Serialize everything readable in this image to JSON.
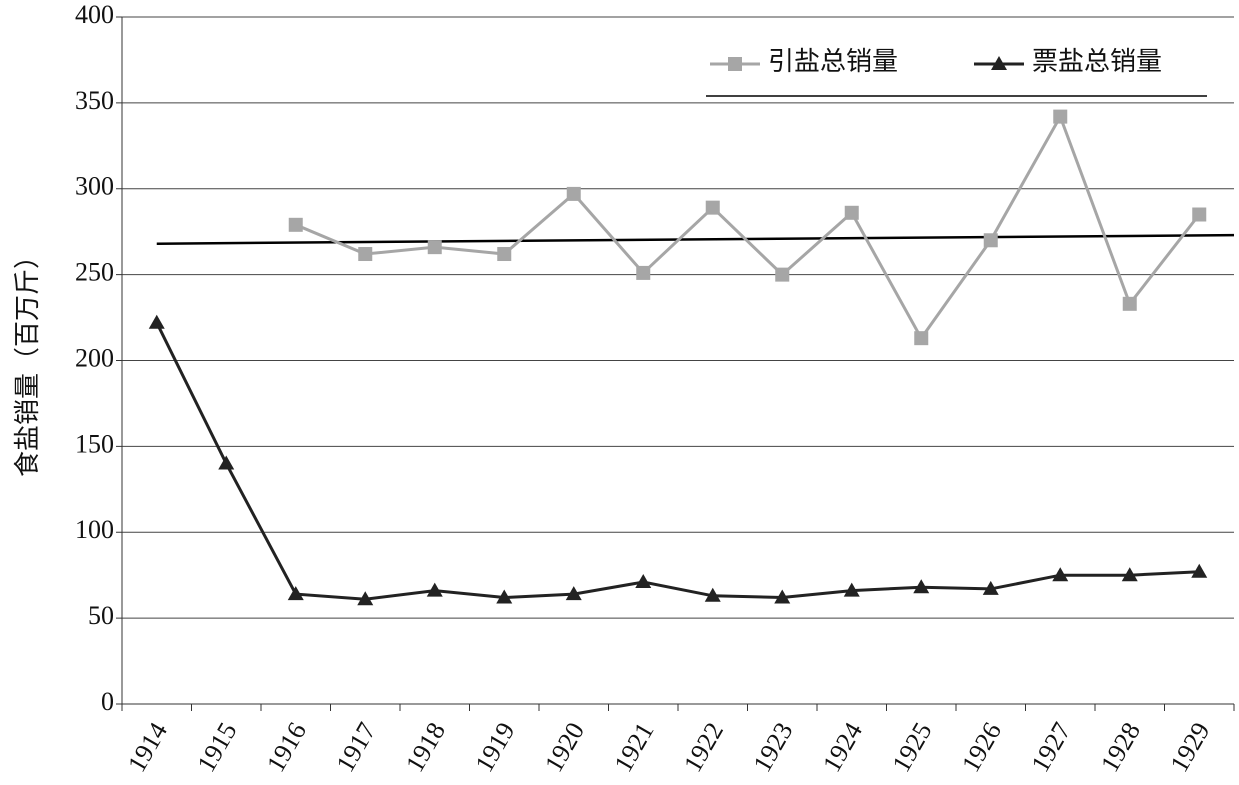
{
  "chart_data": {
    "type": "line",
    "y_label": "食盐销量（百万斤）",
    "categories": [
      "1914",
      "1915",
      "1916",
      "1917",
      "1918",
      "1919",
      "1920",
      "1921",
      "1922",
      "1923",
      "1924",
      "1925",
      "1926",
      "1927",
      "1928",
      "1929"
    ],
    "series": [
      {
        "name": "引盐总销量",
        "color": "#a6a6a6",
        "marker": "square",
        "values": [
          null,
          null,
          279,
          262,
          266,
          262,
          297,
          251,
          289,
          250,
          286,
          213,
          270,
          342,
          233,
          285
        ]
      },
      {
        "name": "票盐总销量",
        "color": "#222222",
        "marker": "triangle",
        "values": [
          222,
          140,
          64,
          61,
          66,
          62,
          64,
          71,
          63,
          62,
          66,
          68,
          67,
          75,
          75,
          77
        ]
      }
    ],
    "trend_line": {
      "color": "#000000",
      "values": [
        268,
        273
      ]
    },
    "ylim": [
      0,
      400
    ],
    "yticks": [
      0,
      50,
      100,
      150,
      200,
      250,
      300,
      350,
      400
    ],
    "grid": true,
    "legend": "upper right"
  }
}
